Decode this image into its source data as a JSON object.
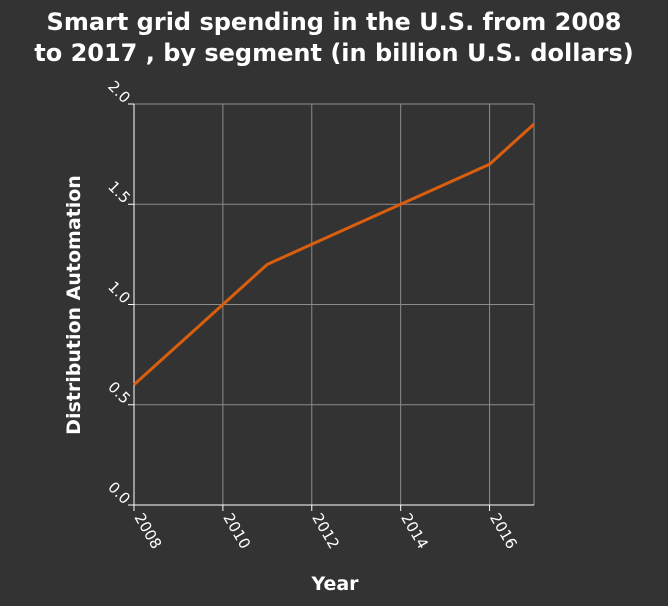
{
  "chart_data": {
    "type": "line",
    "title_line1": "Smart grid spending in the U.S. from 2008",
    "title_line2": "to 2017 , by segment (in billion U.S. dollars)",
    "xlabel": "Year",
    "ylabel": "Distribution Automation",
    "x": [
      2008,
      2009,
      2010,
      2011,
      2012,
      2013,
      2014,
      2015,
      2016,
      2017
    ],
    "series": [
      {
        "values": [
          0.6,
          0.8,
          1.0,
          1.2,
          1.3,
          1.4,
          1.5,
          1.6,
          1.7,
          1.9
        ]
      }
    ],
    "xlim": [
      2008,
      2017
    ],
    "ylim": [
      0.0,
      2.0
    ],
    "xticks": [
      "2008",
      "2010",
      "2012",
      "2014",
      "2016"
    ],
    "yticks": [
      "0.0",
      "0.5",
      "1.0",
      "1.5",
      "2.0"
    ],
    "grid": true,
    "colors": {
      "background": "#333333",
      "line": "#d95f0e",
      "grid": "#8c8c8c",
      "text": "#ffffff"
    }
  }
}
